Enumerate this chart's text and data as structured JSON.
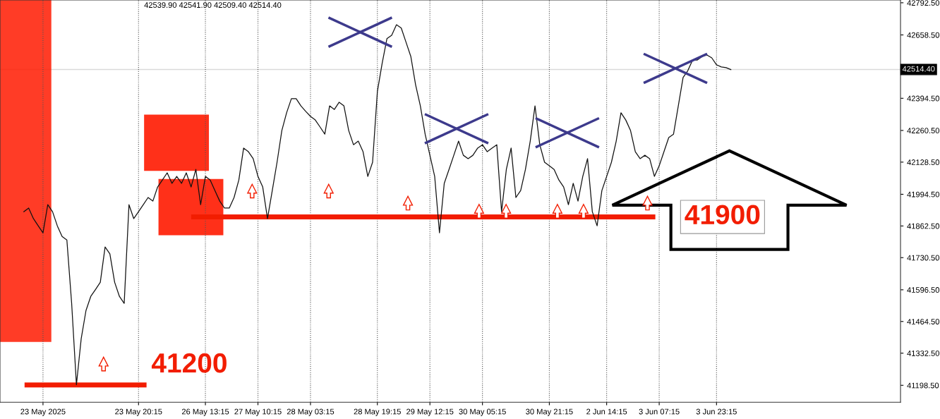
{
  "chart_data": {
    "type": "line",
    "marker": "none",
    "line_style": "solid",
    "grid": "x",
    "legend": false,
    "annotations": [
      "42539.90 42541.90 42509.40 42514.40"
    ],
    "categories": [
      null,
      null,
      null,
      null,
      "23 May 2025",
      null,
      null,
      null,
      null,
      null,
      null,
      null,
      null,
      null,
      null,
      null,
      null,
      null,
      null,
      null,
      null,
      null,
      null,
      null,
      "23 May 20:15",
      null,
      null,
      null,
      null,
      null,
      null,
      null,
      null,
      null,
      null,
      null,
      null,
      null,
      "26 May 13:15",
      null,
      null,
      null,
      null,
      null,
      null,
      null,
      null,
      null,
      null,
      "27 May 10:15",
      null,
      null,
      null,
      null,
      null,
      null,
      null,
      null,
      null,
      null,
      "28 May 03:15",
      null,
      null,
      null,
      null,
      null,
      null,
      null,
      null,
      null,
      null,
      null,
      null,
      null,
      "28 May 19:15",
      null,
      null,
      null,
      null,
      null,
      null,
      null,
      null,
      null,
      null,
      "29 May 12:15",
      null,
      null,
      null,
      null,
      null,
      null,
      null,
      null,
      null,
      null,
      "30 May 05:15",
      null,
      null,
      null,
      null,
      null,
      null,
      null,
      null,
      null,
      null,
      null,
      null,
      null,
      "30 May 21:15",
      null,
      null,
      null,
      null,
      null,
      null,
      null,
      null,
      null,
      null,
      null,
      "2 Jun 14:15",
      null,
      null,
      null,
      null,
      null,
      null,
      null,
      null,
      null,
      null,
      "3 Jun 07:15",
      null,
      null,
      null,
      null,
      null,
      null,
      null,
      null,
      null,
      null,
      null,
      "3 Jun 23:15",
      null,
      null,
      null
    ],
    "ylim": [
      41128,
      42804
    ],
    "yticks": [
      {
        "value": 41198.5,
        "label": "41198.50"
      },
      {
        "value": 41332.5,
        "label": "41332.50"
      },
      {
        "value": 41464.5,
        "label": "41464.50"
      },
      {
        "value": 41596.5,
        "label": "41596.50"
      },
      {
        "value": 41730.5,
        "label": "41730.50"
      },
      {
        "value": 41862.5,
        "label": "41862.50"
      },
      {
        "value": 41994.5,
        "label": "41994.50"
      },
      {
        "value": 42128.5,
        "label": "42128.50"
      },
      {
        "value": 42260.5,
        "label": "42260.50"
      },
      {
        "value": 42394.5,
        "label": "42394.50"
      },
      {
        "value": 42658.5,
        "label": "42658.50"
      },
      {
        "value": 42792.5,
        "label": "42792.50"
      }
    ],
    "ref_lines": [
      {
        "axis": "y",
        "value": 41200,
        "label": "41200",
        "color": "#f21d00"
      },
      {
        "axis": "y",
        "value": 41900,
        "label": "41900",
        "color": "#f21d00"
      },
      {
        "axis": "y",
        "value": 42514.4,
        "label": "42514.40",
        "color": "#d9d9d9"
      }
    ],
    "series": [
      {
        "color": "#111111",
        "values": [
          41922,
          41937,
          41893,
          41863,
          41834,
          41951,
          41922,
          41863,
          41819,
          41804,
          41540,
          41201,
          41393,
          41510,
          41569,
          41598,
          41628,
          41775,
          41746,
          41628,
          41569,
          41540,
          41951,
          41893,
          41922,
          41951,
          41981,
          41966,
          42025,
          42054,
          42084,
          42040,
          42069,
          42040,
          42084,
          42025,
          42098,
          41951,
          42069,
          42054,
          42010,
          41966,
          41937,
          41937,
          41981,
          42054,
          42187,
          42172,
          42143,
          42069,
          42025,
          41893,
          42010,
          42128,
          42260,
          42334,
          42393,
          42393,
          42363,
          42340,
          42319,
          42304,
          42275,
          42245,
          42363,
          42348,
          42378,
          42363,
          42260,
          42201,
          42216,
          42172,
          42069,
          42128,
          42422,
          42540,
          42643,
          42657,
          42701,
          42687,
          42628,
          42569,
          42451,
          42363,
          42245,
          42157,
          42069,
          41834,
          42040,
          42098,
          42157,
          42216,
          42157,
          42143,
          42157,
          42187,
          42201,
          42172,
          42187,
          42201,
          41922,
          42098,
          42187,
          41981,
          42010,
          42098,
          42216,
          42363,
          42201,
          42128,
          42113,
          42098,
          42054,
          42025,
          41951,
          42040,
          41966,
          42069,
          42143,
          41922,
          41863,
          42010,
          42069,
          42128,
          42216,
          42334,
          42304,
          42260,
          42172,
          42143,
          42157,
          42143,
          42069,
          42113,
          42172,
          42231,
          42245,
          42363,
          42481,
          42510,
          42554,
          42554,
          42569,
          42575,
          42563,
          42534,
          42525,
          42522,
          42514
        ]
      }
    ]
  }
}
